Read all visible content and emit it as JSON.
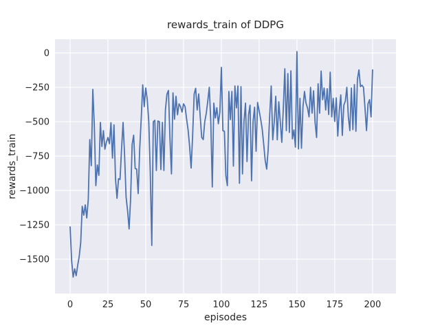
{
  "figure": {
    "background": "#ffffff"
  },
  "chart_data": {
    "type": "line",
    "title": "rewards_train of DDPG",
    "xlabel": "episodes",
    "ylabel": "rewards_train",
    "x_ticks": [
      0,
      25,
      50,
      75,
      100,
      125,
      150,
      175,
      200
    ],
    "y_ticks": [
      0,
      -250,
      -500,
      -750,
      -1000,
      -1250,
      -1500
    ],
    "xlim": [
      -10,
      215.5
    ],
    "ylim": [
      -1750,
      100
    ],
    "grid": true,
    "legend": "none",
    "style": {
      "axes_background": "#EAEAF2",
      "grid_color": "#FFFFFF",
      "line_color": "#4C72B0",
      "text_color": "#262626",
      "line_width": 1.8,
      "grid_width": 1.2
    },
    "x_description": "episode index; one point per episode, x = 0..200 step 1",
    "series": [
      {
        "name": "rewards_train",
        "color": "#4C72B0",
        "values": [
          -1265,
          -1510,
          -1630,
          -1570,
          -1620,
          -1545,
          -1480,
          -1380,
          -1115,
          -1180,
          -1105,
          -1200,
          -1065,
          -630,
          -820,
          -265,
          -530,
          -965,
          -815,
          -890,
          -505,
          -680,
          -565,
          -700,
          -648,
          -615,
          -660,
          -507,
          -765,
          -523,
          -915,
          -1057,
          -915,
          -920,
          -700,
          -505,
          -740,
          -1048,
          -1148,
          -1280,
          -1057,
          -665,
          -598,
          -840,
          -845,
          -1023,
          -700,
          -480,
          -232,
          -390,
          -255,
          -340,
          -500,
          -870,
          -1400,
          -500,
          -490,
          -855,
          -495,
          -500,
          -848,
          -505,
          -855,
          -415,
          -300,
          -273,
          -620,
          -880,
          -290,
          -482,
          -315,
          -450,
          -370,
          -390,
          -430,
          -370,
          -390,
          -480,
          -560,
          -680,
          -837,
          -600,
          -300,
          -257,
          -415,
          -298,
          -460,
          -615,
          -630,
          -500,
          -440,
          -350,
          -250,
          -500,
          -975,
          -365,
          -473,
          -398,
          -515,
          -430,
          -105,
          -565,
          -570,
          -890,
          -965,
          -280,
          -485,
          -280,
          -823,
          -240,
          -400,
          -240,
          -948,
          -245,
          -880,
          -500,
          -365,
          -790,
          -450,
          -380,
          -930,
          -500,
          -395,
          -715,
          -360,
          -420,
          -480,
          -550,
          -660,
          -780,
          -845,
          -700,
          -450,
          -240,
          -632,
          -500,
          -315,
          -632,
          -355,
          -500,
          -650,
          -400,
          -115,
          -565,
          -150,
          -578,
          -130,
          -625,
          -560,
          -685,
          10,
          -698,
          -330,
          -693,
          -390,
          -280,
          -365,
          -400,
          -465,
          -250,
          -438,
          -275,
          -505,
          -615,
          -224,
          -438,
          -132,
          -340,
          -255,
          -415,
          -260,
          -448,
          -140,
          -465,
          -330,
          -498,
          -327,
          -605,
          -420,
          -305,
          -600,
          -380,
          -350,
          -250,
          -465,
          -565,
          -255,
          -558,
          -230,
          -570,
          -190,
          -123,
          -245,
          -235,
          -250,
          -400,
          -565,
          -370,
          -340,
          -465,
          -123
        ]
      }
    ]
  }
}
